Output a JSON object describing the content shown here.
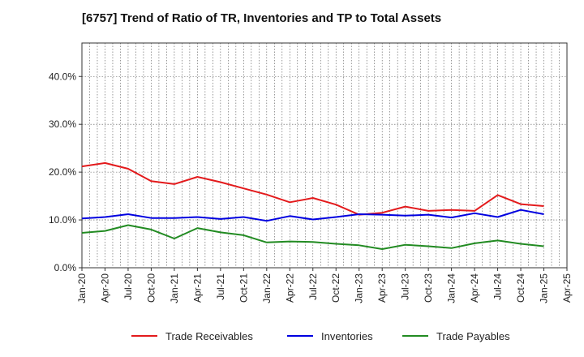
{
  "chart_data": {
    "type": "line",
    "title": "[6757]  Trend of Ratio of TR, Inventories and TP to Total Assets",
    "xlabel": "",
    "ylabel": "",
    "ylim": [
      0,
      47
    ],
    "y_ticks": [
      0,
      10,
      20,
      30,
      40
    ],
    "y_tick_labels": [
      "0.0%",
      "10.0%",
      "20.0%",
      "30.0%",
      "40.0%"
    ],
    "x_ticks": [
      "Jan-20",
      "Apr-20",
      "Jul-20",
      "Oct-20",
      "Jan-21",
      "Apr-21",
      "Jul-21",
      "Oct-21",
      "Jan-22",
      "Apr-22",
      "Jul-22",
      "Oct-22",
      "Jan-23",
      "Apr-23",
      "Jul-23",
      "Oct-23",
      "Jan-24",
      "Apr-24",
      "Jul-24",
      "Oct-24",
      "Jan-25",
      "Apr-25"
    ],
    "grid": true,
    "legend_position": "bottom",
    "series": [
      {
        "name": "Trade Receivables",
        "color": "#e31a1c",
        "values": [
          21.2,
          21.9,
          20.7,
          18.1,
          17.5,
          19.0,
          17.9,
          16.6,
          15.3,
          13.7,
          14.6,
          13.2,
          11.1,
          11.5,
          12.8,
          11.9,
          12.1,
          11.9,
          15.2,
          13.3,
          12.9
        ]
      },
      {
        "name": "Inventories",
        "color": "#0000e0",
        "values": [
          10.3,
          10.6,
          11.2,
          10.4,
          10.4,
          10.6,
          10.2,
          10.6,
          9.8,
          10.8,
          10.1,
          10.6,
          11.2,
          11.1,
          10.9,
          11.1,
          10.5,
          11.4,
          10.6,
          12.1,
          11.2
        ]
      },
      {
        "name": "Trade Payables",
        "color": "#228b22",
        "values": [
          7.3,
          7.7,
          8.9,
          8.0,
          6.1,
          8.3,
          7.4,
          6.8,
          5.3,
          5.5,
          5.4,
          5.0,
          4.7,
          3.9,
          4.8,
          4.5,
          4.1,
          5.1,
          5.7,
          5.0,
          4.5
        ]
      }
    ]
  }
}
